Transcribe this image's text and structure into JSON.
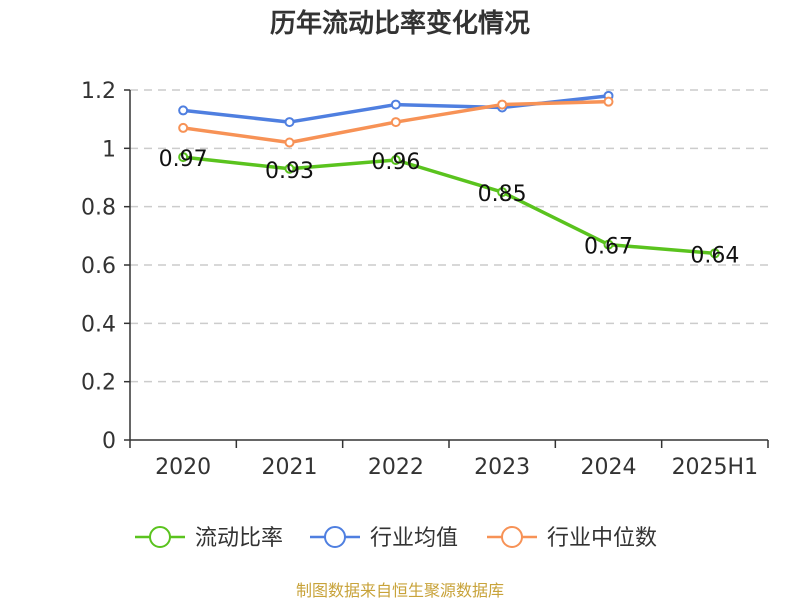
{
  "chart_data": {
    "type": "line",
    "title": "历年流动比率变化情况",
    "categories": [
      "2020",
      "2021",
      "2022",
      "2023",
      "2024",
      "2025H1"
    ],
    "ylim": [
      0,
      1.2
    ],
    "yticks": [
      "0",
      "0.2",
      "0.4",
      "0.6",
      "0.8",
      "1",
      "1.2"
    ],
    "grid": true,
    "legend_position": "bottom",
    "series": [
      {
        "name": "流动比率",
        "color": "#5ac31e",
        "values": [
          0.97,
          0.93,
          0.96,
          0.85,
          0.67,
          0.64
        ],
        "labels": [
          "0.97",
          "0.93",
          "0.96",
          "0.85",
          "0.67",
          "0.64"
        ]
      },
      {
        "name": "行业均值",
        "color": "#4f7fe0",
        "values": [
          1.13,
          1.09,
          1.15,
          1.14,
          1.18,
          null
        ]
      },
      {
        "name": "行业中位数",
        "color": "#f79256",
        "values": [
          1.07,
          1.02,
          1.09,
          1.15,
          1.16,
          null
        ]
      }
    ]
  },
  "source_note": "制图数据来自恒生聚源数据库"
}
